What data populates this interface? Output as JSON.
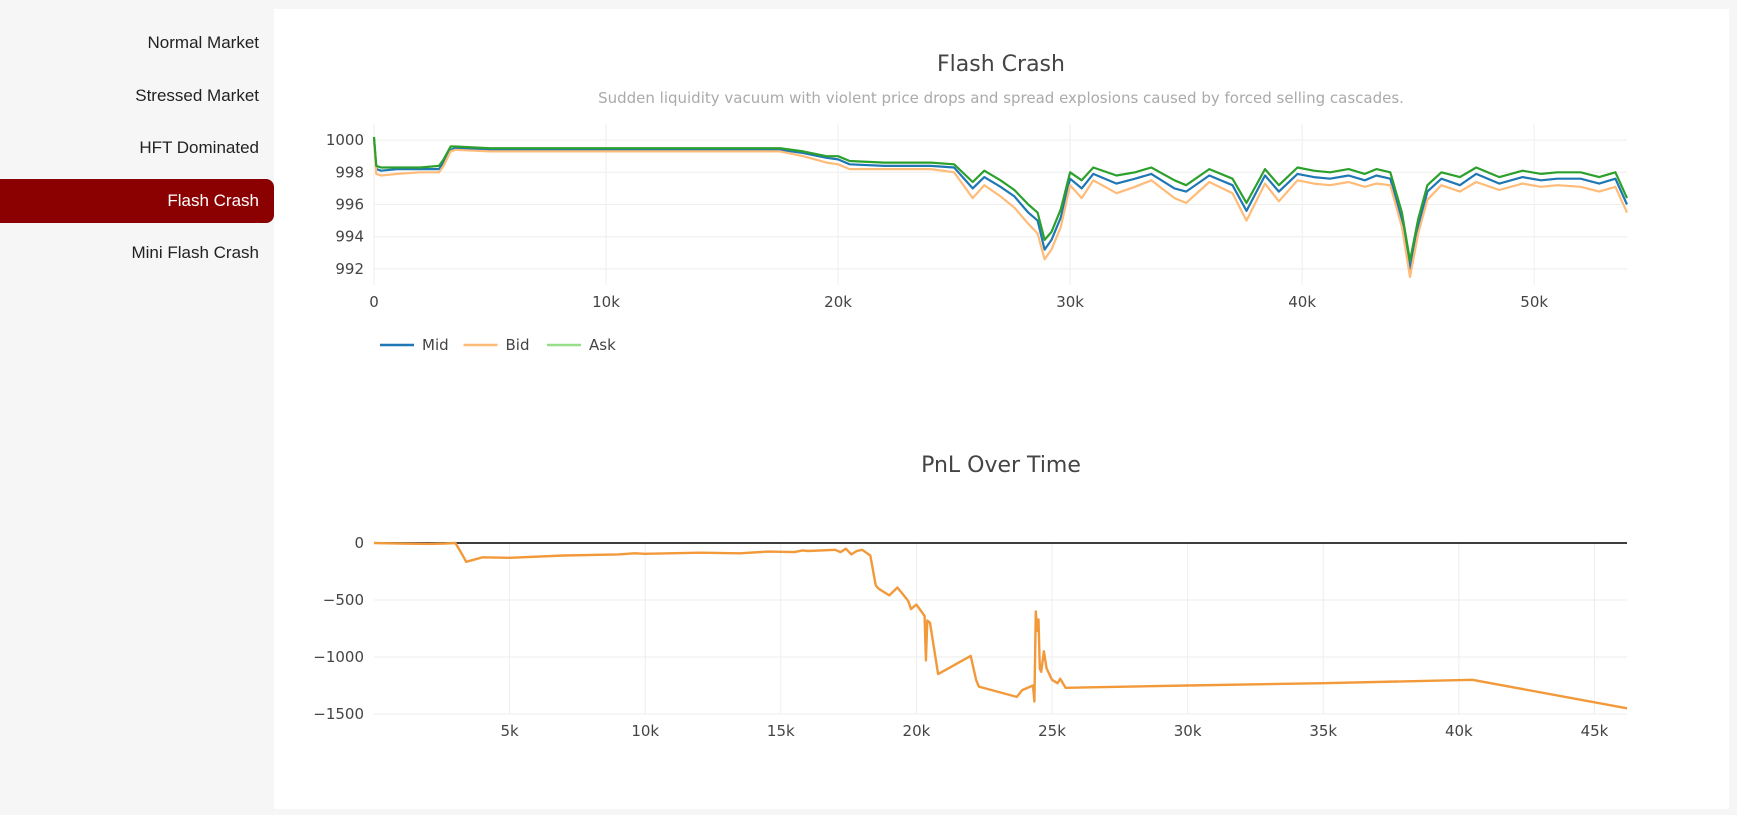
{
  "sidebar": {
    "items": [
      {
        "label": "Normal Market",
        "active": false
      },
      {
        "label": "Stressed Market",
        "active": false
      },
      {
        "label": "HFT Dominated",
        "active": false
      },
      {
        "label": "Flash Crash",
        "active": true
      },
      {
        "label": "Mini Flash Crash",
        "active": false
      }
    ],
    "active_color": "#8b0000"
  },
  "colors": {
    "mid": "#1f77b4",
    "bid": "#ffbb78",
    "ask": "#98df8a",
    "ask_overlay": "#2ca02c",
    "pnl": "#f2993a",
    "zero_line": "#222222",
    "grid": "#eeeeee"
  },
  "chart_data": [
    {
      "type": "line",
      "title": "Flash Crash",
      "subtitle": "Sudden liquidity vacuum with violent price drops and spread explosions caused by forced selling cascades.",
      "xlim": [
        0,
        54000
      ],
      "ylim": [
        991,
        1001
      ],
      "x_ticks": [
        0,
        10000,
        20000,
        30000,
        40000,
        50000
      ],
      "x_tick_labels": [
        "0",
        "10k",
        "20k",
        "30k",
        "40k",
        "50k"
      ],
      "y_ticks": [
        992,
        994,
        996,
        998,
        1000
      ],
      "y_tick_labels": [
        "992",
        "994",
        "996",
        "998",
        "1000"
      ],
      "grid": true,
      "legend": {
        "position": "bottom-left",
        "orientation": "horizontal"
      },
      "x": [
        0,
        100,
        300,
        1000,
        2000,
        2800,
        3000,
        3300,
        3500,
        5000,
        10000,
        15000,
        17500,
        18500,
        19500,
        20000,
        20500,
        22000,
        24000,
        25000,
        25800,
        26300,
        27000,
        27600,
        28200,
        28600,
        28900,
        29200,
        29600,
        30000,
        30500,
        31000,
        32000,
        32800,
        33500,
        34500,
        35000,
        36000,
        37000,
        37600,
        38400,
        39000,
        39800,
        40500,
        41200,
        42000,
        42700,
        43200,
        43800,
        44300,
        44650,
        45000,
        45400,
        46000,
        46800,
        47500,
        48500,
        49500,
        50300,
        51000,
        52000,
        52800,
        53500,
        54000
      ],
      "series": [
        {
          "name": "Mid",
          "values": [
            1000.1,
            998.2,
            998.1,
            998.2,
            998.2,
            998.2,
            998.6,
            999.4,
            999.5,
            999.4,
            999.4,
            999.4,
            999.4,
            999.2,
            998.9,
            998.8,
            998.5,
            998.4,
            998.4,
            998.3,
            997.0,
            997.7,
            997.1,
            996.5,
            995.5,
            995.0,
            993.2,
            993.8,
            995.2,
            997.6,
            997.0,
            997.9,
            997.3,
            997.6,
            997.9,
            997.0,
            996.8,
            997.8,
            997.2,
            995.6,
            997.8,
            996.8,
            997.9,
            997.7,
            997.6,
            997.8,
            997.5,
            997.8,
            997.6,
            995.0,
            992.0,
            994.6,
            996.8,
            997.6,
            997.2,
            997.9,
            997.3,
            997.7,
            997.5,
            997.6,
            997.6,
            997.3,
            997.6,
            996.0
          ]
        },
        {
          "name": "Bid",
          "values": [
            1000.0,
            997.9,
            997.8,
            997.9,
            998.0,
            998.0,
            998.4,
            999.3,
            999.4,
            999.3,
            999.3,
            999.3,
            999.3,
            999.0,
            998.6,
            998.5,
            998.2,
            998.2,
            998.2,
            998.0,
            996.4,
            997.2,
            996.5,
            995.8,
            994.8,
            994.2,
            992.6,
            993.2,
            994.6,
            997.2,
            996.4,
            997.5,
            996.7,
            997.1,
            997.5,
            996.4,
            996.1,
            997.4,
            996.7,
            995.0,
            997.3,
            996.2,
            997.5,
            997.3,
            997.2,
            997.4,
            997.1,
            997.3,
            997.2,
            994.6,
            991.5,
            994.2,
            996.3,
            997.2,
            996.8,
            997.4,
            996.9,
            997.3,
            997.1,
            997.2,
            997.1,
            996.8,
            997.1,
            995.5
          ]
        },
        {
          "name": "Ask",
          "values": [
            1000.2,
            998.4,
            998.3,
            998.3,
            998.3,
            998.4,
            998.8,
            999.6,
            999.6,
            999.5,
            999.5,
            999.5,
            999.5,
            999.3,
            999.0,
            999.0,
            998.7,
            998.6,
            998.6,
            998.5,
            997.4,
            998.1,
            997.5,
            996.9,
            996.0,
            995.5,
            993.8,
            994.3,
            995.7,
            998.0,
            997.5,
            998.3,
            997.8,
            998.0,
            998.3,
            997.5,
            997.2,
            998.2,
            997.6,
            996.1,
            998.2,
            997.2,
            998.3,
            998.1,
            998.0,
            998.2,
            997.9,
            998.2,
            998.0,
            995.5,
            992.5,
            995.1,
            997.2,
            998.0,
            997.7,
            998.3,
            997.7,
            998.1,
            997.9,
            998.0,
            998.0,
            997.7,
            998.0,
            996.4
          ]
        }
      ]
    },
    {
      "type": "line",
      "title": "PnL Over Time",
      "xlim": [
        0,
        46200
      ],
      "ylim": [
        -1500,
        0
      ],
      "x_ticks": [
        5000,
        10000,
        15000,
        20000,
        25000,
        30000,
        35000,
        40000,
        45000
      ],
      "x_tick_labels": [
        "5k",
        "10k",
        "15k",
        "20k",
        "25k",
        "30k",
        "35k",
        "40k",
        "45k"
      ],
      "y_ticks": [
        0,
        -500,
        -1000,
        -1500
      ],
      "y_tick_labels": [
        "0",
        "−500",
        "−1000",
        "−1500"
      ],
      "grid": true,
      "zero_line": true,
      "x": [
        0,
        1000,
        2000,
        2600,
        3000,
        3200,
        3400,
        4000,
        5000,
        7000,
        9000,
        9600,
        10000,
        12000,
        13500,
        14500,
        15500,
        15800,
        16000,
        17000,
        17200,
        17400,
        17600,
        17800,
        18000,
        18300,
        18500,
        18600,
        19000,
        19300,
        19500,
        19700,
        19800,
        20000,
        20300,
        20350,
        20400,
        20500,
        20800,
        22000,
        22200,
        22300,
        23700,
        23900,
        24300,
        24350,
        24400,
        24450,
        24500,
        24550,
        24600,
        24700,
        24800,
        25000,
        25200,
        25300,
        25400,
        25500,
        30000,
        35000,
        40500,
        46200
      ],
      "series": [
        {
          "name": "",
          "values": [
            0,
            -5,
            -8,
            -5,
            0,
            -80,
            -165,
            -125,
            -130,
            -110,
            -100,
            -90,
            -95,
            -85,
            -90,
            -75,
            -80,
            -65,
            -70,
            -60,
            -80,
            -50,
            -100,
            -70,
            -60,
            -110,
            -370,
            -400,
            -460,
            -390,
            -450,
            -510,
            -580,
            -540,
            -640,
            -1030,
            -680,
            -700,
            -1150,
            -990,
            -1200,
            -1260,
            -1350,
            -1290,
            -1250,
            -1390,
            -600,
            -770,
            -670,
            -1100,
            -1130,
            -950,
            -1100,
            -1200,
            -1230,
            -1190,
            -1230,
            -1270,
            -1250,
            -1230,
            -1200,
            -1450
          ]
        }
      ]
    }
  ]
}
